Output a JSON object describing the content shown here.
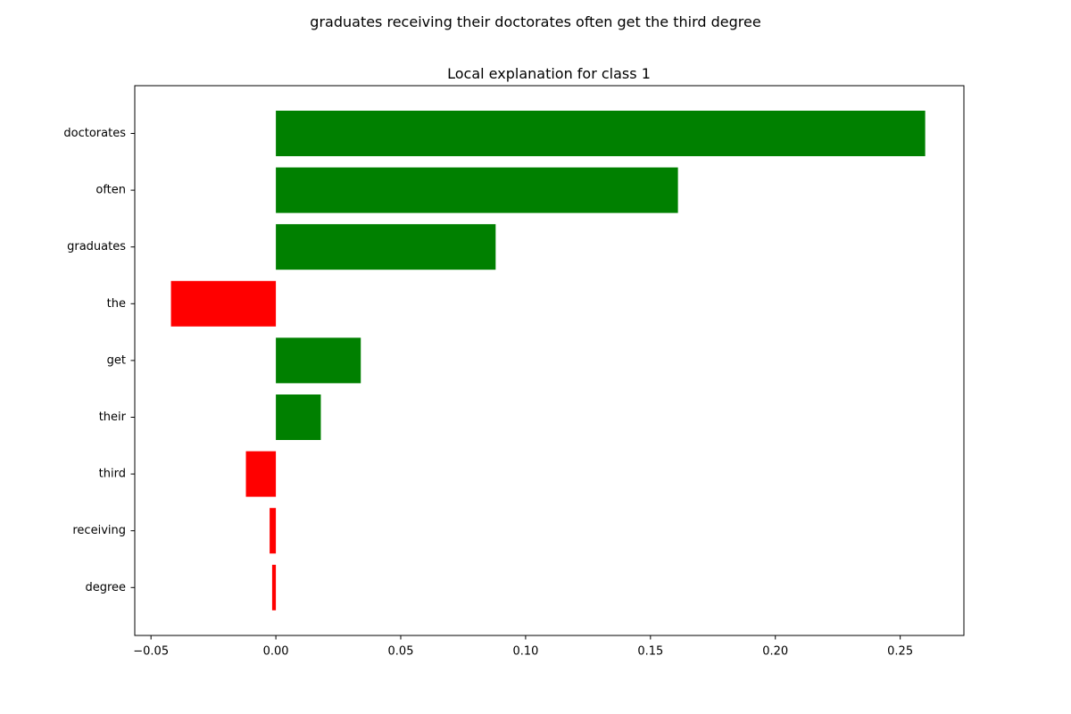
{
  "figure": {
    "suptitle": "graduates receiving their doctorates often get the third degree"
  },
  "chart_data": {
    "type": "bar",
    "orientation": "horizontal",
    "title": "Local explanation for class 1",
    "xlabel": "",
    "ylabel": "",
    "categories": [
      "doctorates",
      "often",
      "graduates",
      "the",
      "get",
      "their",
      "third",
      "receiving",
      "degree"
    ],
    "values": [
      0.26,
      0.161,
      0.088,
      -0.042,
      0.034,
      0.018,
      -0.012,
      -0.0025,
      -0.0015
    ],
    "xlim": [
      -0.0565,
      0.2755
    ],
    "xticks": [
      -0.05,
      0.0,
      0.05,
      0.1,
      0.15,
      0.2,
      0.25
    ],
    "xtick_labels": [
      "−0.05",
      "0.00",
      "0.05",
      "0.10",
      "0.15",
      "0.20",
      "0.25"
    ],
    "grid": false,
    "legend": false,
    "colors": {
      "positive": "#008000",
      "negative": "#ff0000"
    }
  }
}
